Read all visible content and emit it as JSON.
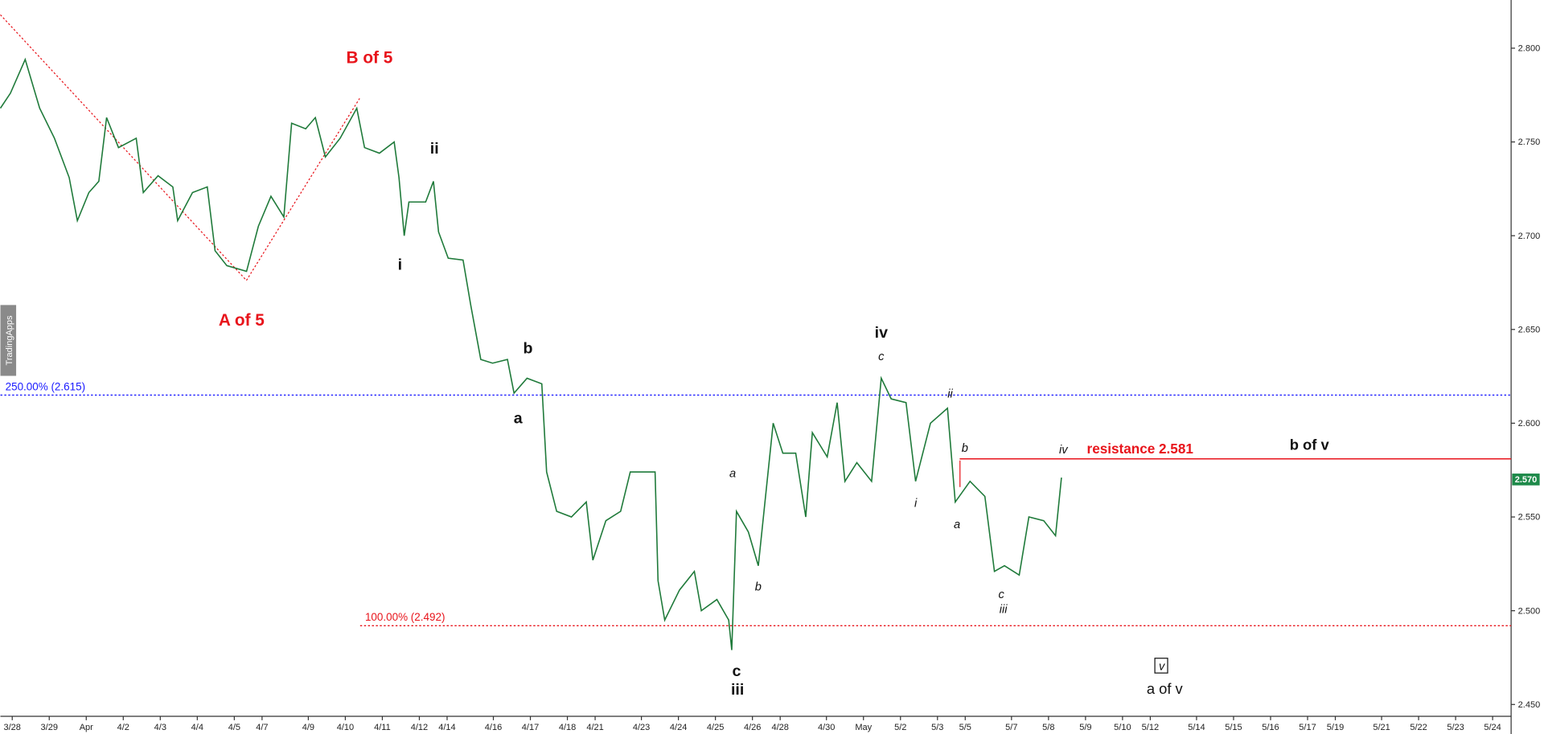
{
  "chart_data": {
    "type": "line",
    "x": [
      -0.32,
      -0.05,
      0.35,
      0.74,
      1.14,
      1.54,
      1.76,
      2.07,
      2.34,
      2.55,
      2.87,
      3.35,
      3.54,
      3.94,
      4.34,
      4.47,
      4.87,
      5.27,
      5.48,
      5.8,
      6.33,
      6.65,
      6.99,
      7.34,
      7.55,
      7.93,
      8.19,
      8.46,
      8.86,
      9.31,
      9.52,
      9.92,
      10.32,
      10.45,
      10.59,
      10.72,
      11.17,
      11.38,
      11.52,
      11.78,
      12.18,
      12.39,
      12.66,
      12.98,
      13.38,
      13.56,
      13.91,
      14.31,
      14.44,
      14.71,
      15.11,
      15.51,
      15.69,
      16.04,
      16.44,
      16.7,
      17.37,
      17.45,
      17.63,
      18.03,
      18.43,
      18.62,
      19.04,
      19.36,
      19.44,
      19.57,
      19.89,
      20.16,
      20.56,
      20.82,
      21.17,
      21.44,
      21.62,
      22.02,
      22.29,
      22.5,
      22.82,
      23.22,
      23.48,
      23.75,
      24.15,
      24.41,
      24.81,
      25.27,
      25.48,
      25.88,
      26.28,
      26.54,
      26.81,
      27.21,
      27.47,
      27.87,
      28.19,
      28.35
    ],
    "series": [
      {
        "color": "#1f7a3a",
        "values": [
          2.768,
          2.776,
          2.794,
          2.768,
          2.752,
          2.731,
          2.708,
          2.723,
          2.729,
          2.763,
          2.747,
          2.752,
          2.723,
          2.732,
          2.726,
          2.708,
          2.723,
          2.726,
          2.692,
          2.684,
          2.681,
          2.705,
          2.721,
          2.71,
          2.76,
          2.757,
          2.763,
          2.742,
          2.752,
          2.768,
          2.747,
          2.744,
          2.75,
          2.731,
          2.7,
          2.718,
          2.718,
          2.729,
          2.702,
          2.688,
          2.687,
          2.663,
          2.634,
          2.632,
          2.634,
          2.616,
          2.624,
          2.621,
          2.574,
          2.553,
          2.55,
          2.558,
          2.527,
          2.548,
          2.553,
          2.574,
          2.574,
          2.516,
          2.495,
          2.511,
          2.521,
          2.5,
          2.506,
          2.495,
          2.479,
          2.553,
          2.542,
          2.524,
          2.6,
          2.584,
          2.584,
          2.55,
          2.595,
          2.582,
          2.611,
          2.569,
          2.579,
          2.569,
          2.624,
          2.613,
          2.611,
          2.569,
          2.6,
          2.608,
          2.558,
          2.569,
          2.561,
          2.521,
          2.524,
          2.519,
          2.55,
          2.548,
          2.54,
          2.571
        ]
      }
    ],
    "xlim": [
      -0.32,
      40.5
    ],
    "xticks": [
      {
        "value": 0,
        "label": "3/28"
      },
      {
        "value": 1,
        "label": "3/29"
      },
      {
        "value": 2,
        "label": "Apr"
      },
      {
        "value": 3,
        "label": "4/2"
      },
      {
        "value": 4,
        "label": "4/3"
      },
      {
        "value": 5,
        "label": "4/4"
      },
      {
        "value": 6,
        "label": "4/5"
      },
      {
        "value": 6.75,
        "label": "4/7"
      },
      {
        "value": 8,
        "label": "4/9"
      },
      {
        "value": 9,
        "label": "4/10"
      },
      {
        "value": 10,
        "label": "4/11"
      },
      {
        "value": 11,
        "label": "4/12"
      },
      {
        "value": 11.75,
        "label": "4/14"
      },
      {
        "value": 13,
        "label": "4/16"
      },
      {
        "value": 14,
        "label": "4/17"
      },
      {
        "value": 15,
        "label": "4/18"
      },
      {
        "value": 15.75,
        "label": "4/21"
      },
      {
        "value": 17,
        "label": "4/23"
      },
      {
        "value": 18,
        "label": "4/24"
      },
      {
        "value": 19,
        "label": "4/25"
      },
      {
        "value": 20,
        "label": "4/26"
      },
      {
        "value": 20.75,
        "label": "4/28"
      },
      {
        "value": 22,
        "label": "4/30"
      },
      {
        "value": 23,
        "label": "May"
      },
      {
        "value": 24,
        "label": "5/2"
      },
      {
        "value": 25,
        "label": "5/3"
      },
      {
        "value": 25.75,
        "label": "5/5"
      },
      {
        "value": 27,
        "label": "5/7"
      },
      {
        "value": 28,
        "label": "5/8"
      },
      {
        "value": 29,
        "label": "5/9"
      },
      {
        "value": 30,
        "label": "5/10"
      },
      {
        "value": 30.75,
        "label": "5/12"
      },
      {
        "value": 32,
        "label": "5/14"
      },
      {
        "value": 33,
        "label": "5/15"
      },
      {
        "value": 34,
        "label": "5/16"
      },
      {
        "value": 35,
        "label": "5/17"
      },
      {
        "value": 35.75,
        "label": "5/19"
      },
      {
        "value": 37,
        "label": "5/21"
      },
      {
        "value": 38,
        "label": "5/22"
      },
      {
        "value": 39,
        "label": "5/23"
      },
      {
        "value": 40,
        "label": "5/24"
      }
    ],
    "ylim": [
      2.4437,
      2.8257
    ],
    "yticks": [
      {
        "value": 2.45,
        "label": "2.450"
      },
      {
        "value": 2.5,
        "label": "2.500"
      },
      {
        "value": 2.55,
        "label": "2.550"
      },
      {
        "value": 2.6,
        "label": "2.600"
      },
      {
        "value": 2.65,
        "label": "2.650"
      },
      {
        "value": 2.7,
        "label": "2.700"
      },
      {
        "value": 2.75,
        "label": "2.750"
      },
      {
        "value": 2.8,
        "label": "2.800"
      }
    ],
    "levels": [
      {
        "value": 2.615,
        "label": "250.00% (2.615)",
        "color": "#1a1aff",
        "style": "dotted",
        "x_start": -0.32
      },
      {
        "value": 2.492,
        "label": "100.00% (2.492)",
        "color": "#e8141b",
        "style": "dotted",
        "x_start": 9.4
      },
      {
        "value": 2.581,
        "color": "#e8141b",
        "style": "solid",
        "x_start": 25.6
      }
    ],
    "last_price": {
      "value": 2.57,
      "label": "2.570",
      "color": "#1e8a4a"
    },
    "watermark": "TradingApps",
    "annotations": [
      "B of 5",
      "A of 5",
      "ii",
      "i",
      "b",
      "a",
      "iv",
      "c",
      "ii",
      "b",
      "iv",
      "resistance 2.581",
      "b of v",
      "a",
      "i",
      "a",
      "b",
      "c",
      "iii",
      "c",
      "iii",
      "v",
      "a of v"
    ]
  }
}
